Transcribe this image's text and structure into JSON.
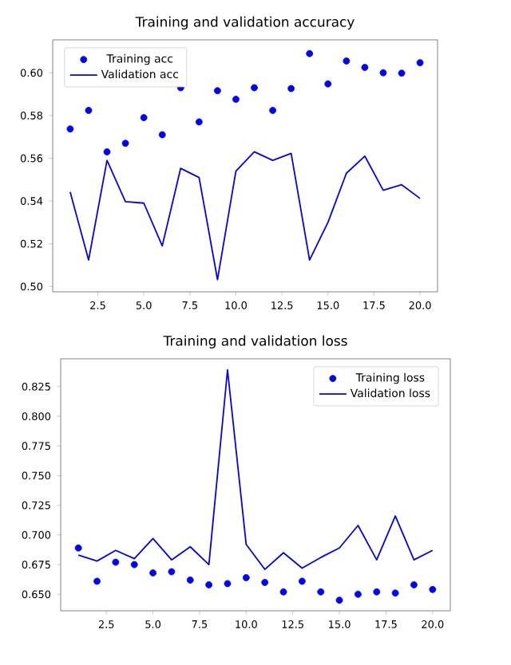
{
  "chart_data": [
    {
      "type": "line",
      "title": "Training and validation accuracy",
      "x": [
        1,
        2,
        3,
        4,
        5,
        6,
        7,
        8,
        9,
        10,
        11,
        12,
        13,
        14,
        15,
        16,
        17,
        18,
        19,
        20
      ],
      "series": [
        {
          "name": "Training acc",
          "type": "scatter",
          "marker": "circle",
          "color": "#0000ff",
          "values": [
            0.5737,
            0.5824,
            0.563,
            0.567,
            0.579,
            0.571,
            0.593,
            0.577,
            0.5916,
            0.5876,
            0.593,
            0.5824,
            0.5926,
            0.609,
            0.5948,
            0.6055,
            0.6025,
            0.6,
            0.5998,
            0.6047
          ]
        },
        {
          "name": "Validation acc",
          "line_style": "solid",
          "color": "#0000ff",
          "values": [
            0.5442,
            0.5124,
            0.559,
            0.5397,
            0.539,
            0.519,
            0.5553,
            0.551,
            0.5032,
            0.554,
            0.563,
            0.559,
            0.5623,
            0.5124,
            0.53,
            0.553,
            0.561,
            0.545,
            0.5476,
            0.5412
          ]
        }
      ],
      "xlim": [
        0.05,
        20.95
      ],
      "ylim": [
        0.4975,
        0.6154
      ],
      "xticks": [
        2.5,
        {
          "value": 5,
          "label": "5.0"
        },
        7.5,
        {
          "value": 10,
          "label": "10.0"
        },
        12.5,
        {
          "value": 15,
          "label": "15.0"
        },
        17.5,
        {
          "value": 20,
          "label": "20.0"
        }
      ],
      "yticks": [
        {
          "value": 0.5,
          "label": "0.50"
        },
        0.52,
        0.54,
        0.56,
        0.58,
        {
          "value": 0.6,
          "label": "0.60"
        }
      ],
      "legend": "top left"
    },
    {
      "type": "line",
      "title": "Training and validation loss",
      "x": [
        1,
        2,
        3,
        4,
        5,
        6,
        7,
        8,
        9,
        10,
        11,
        12,
        13,
        14,
        15,
        16,
        17,
        18,
        19,
        20
      ],
      "series": [
        {
          "name": "Training loss",
          "type": "scatter",
          "marker": "circle",
          "color": "#0000ff",
          "values": [
            0.689,
            0.661,
            0.677,
            0.675,
            0.668,
            0.669,
            0.662,
            0.658,
            0.659,
            0.664,
            0.66,
            0.652,
            0.661,
            0.652,
            0.645,
            0.65,
            0.652,
            0.651,
            0.658,
            0.654
          ]
        },
        {
          "name": "Validation loss",
          "line_style": "solid",
          "color": "#0000ff",
          "values": [
            0.683,
            0.678,
            0.687,
            0.68,
            0.697,
            0.679,
            0.69,
            0.675,
            0.839,
            0.692,
            0.671,
            0.685,
            0.672,
            0.681,
            0.689,
            0.708,
            0.679,
            0.716,
            0.679,
            0.687
          ]
        }
      ],
      "xlim": [
        0.05,
        20.95
      ],
      "ylim": [
        0.6361,
        0.8484
      ],
      "xticks": [
        2.5,
        {
          "value": 5,
          "label": "5.0"
        },
        7.5,
        {
          "value": 10,
          "label": "10.0"
        },
        12.5,
        {
          "value": 15,
          "label": "15.0"
        },
        17.5,
        {
          "value": 20,
          "label": "20.0"
        }
      ],
      "yticks": [
        {
          "value": 0.65,
          "label": "0.650"
        },
        0.675,
        {
          "value": 0.7,
          "label": "0.700"
        },
        0.725,
        {
          "value": 0.75,
          "label": "0.750"
        },
        0.775,
        {
          "value": 0.8,
          "label": "0.800"
        },
        0.825
      ],
      "legend": "top right"
    }
  ]
}
